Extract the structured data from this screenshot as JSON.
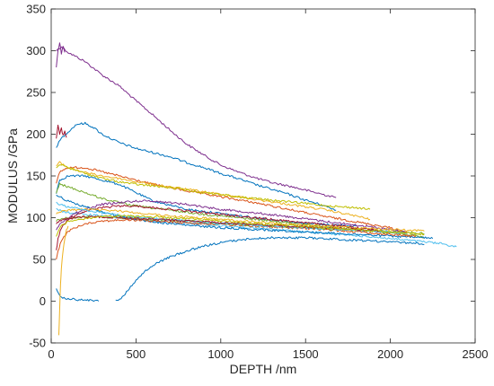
{
  "chart_data": {
    "type": "line",
    "title": "",
    "xlabel": "DEPTH /nm",
    "ylabel": "MODULUS /GPa",
    "xlim": [
      0,
      2500
    ],
    "ylim": [
      -50,
      350
    ],
    "xticks": [
      0,
      500,
      1000,
      1500,
      2000,
      2500
    ],
    "yticks": [
      -50,
      0,
      50,
      100,
      150,
      200,
      250,
      300,
      350
    ],
    "grid": false,
    "legend": "none",
    "series": [
      {
        "color": "#7e2f8e",
        "x": [
          30,
          60,
          100,
          200,
          300,
          400,
          500,
          600,
          700,
          800,
          900,
          1000,
          1100,
          1200,
          1300,
          1400,
          1500,
          1600,
          1680
        ],
        "y": [
          300,
          305,
          298,
          287,
          271,
          258,
          240,
          223,
          205,
          188,
          175,
          163,
          155,
          148,
          142,
          138,
          133,
          128,
          124
        ]
      },
      {
        "color": "#0072bd",
        "x": [
          30,
          60,
          100,
          150,
          200,
          250,
          300,
          400,
          500,
          600,
          700,
          800,
          900,
          1000,
          1100,
          1200,
          1300,
          1400,
          1500,
          1600,
          1680
        ],
        "y": [
          185,
          195,
          203,
          212,
          213,
          208,
          200,
          190,
          183,
          178,
          173,
          166,
          160,
          153,
          147,
          140,
          134,
          128,
          121,
          115,
          109
        ]
      },
      {
        "color": "#0072bd",
        "x": [
          30,
          50,
          100,
          200,
          300,
          400,
          500,
          600,
          800,
          1000,
          1200,
          1400,
          1600,
          1800
        ],
        "y": [
          130,
          145,
          150,
          150,
          145,
          140,
          130,
          120,
          110,
          105,
          100,
          95,
          92,
          90
        ]
      },
      {
        "color": "#d95319",
        "x": [
          30,
          50,
          100,
          200,
          300,
          400,
          500,
          600,
          800,
          1000,
          1200,
          1400,
          1600,
          1800,
          2000,
          2100
        ],
        "y": [
          140,
          155,
          160,
          160,
          155,
          150,
          145,
          140,
          132,
          125,
          118,
          110,
          102,
          95,
          88,
          82
        ]
      },
      {
        "color": "#edb120",
        "x": [
          30,
          50,
          100,
          200,
          300,
          400,
          500,
          600,
          700,
          800,
          900,
          1000,
          1100,
          1200,
          1300,
          1400,
          1500,
          1600,
          1700,
          1800,
          1880
        ],
        "y": [
          162,
          166,
          160,
          154,
          150,
          147,
          143,
          140,
          137,
          134,
          131,
          128,
          125,
          122,
          119,
          116,
          113,
          110,
          106,
          102,
          98
        ]
      },
      {
        "color": "#77ac30",
        "x": [
          30,
          50,
          100,
          200,
          300,
          400,
          500,
          700,
          900,
          1100,
          1300,
          1500,
          1700,
          1900,
          2100,
          2200
        ],
        "y": [
          130,
          140,
          137,
          130,
          123,
          118,
          114,
          109,
          104,
          100,
          96,
          92,
          88,
          84,
          80,
          76
        ]
      },
      {
        "color": "#bfbf00",
        "x": [
          30,
          60,
          100,
          200,
          300,
          400,
          500,
          600,
          700,
          800,
          900,
          1000,
          1100,
          1200,
          1300,
          1400,
          1500,
          1600,
          1700,
          1800,
          1880
        ],
        "y": [
          160,
          164,
          160,
          153,
          147,
          143,
          140,
          138,
          136,
          133,
          130,
          128,
          125,
          123,
          121,
          119,
          117,
          115,
          113,
          112,
          110
        ]
      },
      {
        "color": "#4dbeee",
        "x": [
          30,
          60,
          100,
          200,
          300,
          400,
          500,
          700,
          900,
          1100,
          1300,
          1500,
          1700,
          1900,
          2100,
          2300,
          2390
        ],
        "y": [
          110,
          108,
          106,
          104,
          102,
          100,
          98,
          95,
          92,
          89,
          86,
          83,
          80,
          77,
          73,
          69,
          65
        ]
      },
      {
        "color": "#a2142f",
        "x": [
          30,
          40,
          60,
          100,
          150,
          200,
          300,
          400,
          500,
          600,
          800,
          1000,
          1200,
          1400,
          1600,
          1800,
          1950
        ],
        "y": [
          60,
          75,
          88,
          98,
          104,
          108,
          112,
          114,
          114,
          112,
          108,
          104,
          100,
          96,
          92,
          88,
          84
        ]
      },
      {
        "color": "#7e2f8e",
        "x": [
          30,
          50,
          100,
          150,
          200,
          300,
          400,
          500,
          600,
          800,
          1000,
          1200,
          1400,
          1600,
          1800,
          2000,
          2100
        ],
        "y": [
          85,
          93,
          100,
          106,
          110,
          116,
          118,
          120,
          120,
          116,
          110,
          106,
          101,
          96,
          91,
          86,
          82
        ]
      },
      {
        "color": "#0072bd",
        "x": [
          30,
          60,
          100,
          200,
          300,
          400,
          500,
          600,
          700,
          800,
          1000,
          1200,
          1400,
          1600,
          1800,
          2000,
          2200,
          2250
        ],
        "y": [
          128,
          124,
          120,
          113,
          107,
          102,
          98,
          95,
          93,
          91,
          88,
          86,
          84,
          82,
          80,
          78,
          76,
          75
        ]
      },
      {
        "color": "#d95319",
        "x": [
          30,
          40,
          60,
          100,
          200,
          300,
          400,
          500,
          600,
          700,
          800,
          1000,
          1200,
          1400,
          1600,
          1800,
          2000,
          2150
        ],
        "y": [
          50,
          60,
          72,
          84,
          93,
          96,
          97,
          97,
          96,
          95,
          94,
          92,
          90,
          88,
          86,
          83,
          80,
          78
        ]
      },
      {
        "color": "#edb120",
        "x": [
          30,
          50,
          100,
          200,
          300,
          400,
          500,
          600,
          700,
          800,
          1000,
          1200,
          1400,
          1600,
          1800,
          2000,
          2200
        ],
        "y": [
          104,
          107,
          109,
          110,
          109,
          108,
          106,
          104,
          102,
          101,
          98,
          95,
          92,
          90,
          88,
          86,
          84
        ]
      },
      {
        "color": "#77ac30",
        "x": [
          30,
          50,
          100,
          200,
          300,
          400,
          500,
          600,
          800,
          1000,
          1200,
          1400,
          1600,
          1800,
          2000,
          2200
        ],
        "y": [
          96,
          98,
          100,
          101,
          101,
          100,
          99,
          98,
          96,
          93,
          91,
          89,
          87,
          85,
          83,
          81
        ]
      },
      {
        "color": "#4dbeee",
        "x": [
          30,
          50,
          100,
          200,
          300,
          400,
          500,
          600,
          800,
          1000,
          1200,
          1400,
          1600,
          1800,
          2000,
          2100
        ],
        "y": [
          118,
          116,
          113,
          109,
          106,
          103,
          101,
          99,
          96,
          93,
          91,
          89,
          87,
          85,
          83,
          81
        ]
      },
      {
        "color": "#a2142f",
        "x": [
          30,
          50,
          100,
          200,
          300,
          400,
          500,
          600,
          800,
          1000,
          1200,
          1400,
          1600,
          1800,
          1950
        ],
        "y": [
          92,
          96,
          99,
          101,
          101,
          100,
          99,
          98,
          96,
          94,
          92,
          90,
          88,
          86,
          84
        ]
      },
      {
        "color": "#bfbf00",
        "x": [
          30,
          40,
          60,
          100,
          200,
          300,
          400,
          500,
          600,
          800,
          1000,
          1200,
          1400,
          1600,
          1800,
          2000,
          2200
        ],
        "y": [
          78,
          84,
          90,
          95,
          99,
          101,
          102,
          102,
          101,
          99,
          96,
          93,
          91,
          88,
          86,
          83,
          80
        ]
      },
      {
        "color": "#0072bd",
        "x": [
          30,
          40,
          60,
          100,
          150,
          200,
          250,
          280
        ],
        "y": [
          15,
          10,
          5,
          3,
          2,
          1,
          1,
          0
        ]
      },
      {
        "color": "#0072bd",
        "x": [
          380,
          420,
          460,
          500,
          550,
          600,
          650,
          700,
          800,
          900,
          1000,
          1100,
          1200,
          1300,
          1400,
          1500,
          1600,
          1700,
          1800,
          1900,
          2000,
          2100,
          2200
        ],
        "y": [
          0,
          5,
          15,
          25,
          35,
          43,
          48,
          53,
          60,
          66,
          70,
          73,
          75,
          76,
          76,
          76,
          75,
          74,
          73,
          72,
          71,
          70,
          68
        ]
      },
      {
        "color": "#edb120",
        "x": [
          45,
          50,
          55,
          60,
          70,
          80,
          90,
          100
        ],
        "y": [
          -40,
          -10,
          20,
          40,
          60,
          75,
          85,
          90
        ]
      },
      {
        "color": "#7e2f8e",
        "x": [
          30,
          40,
          50,
          60,
          70,
          80
        ],
        "y": [
          280,
          300,
          310,
          296,
          306,
          298
        ]
      },
      {
        "color": "#a2142f",
        "x": [
          30,
          40,
          50,
          60,
          70,
          80,
          90
        ],
        "y": [
          195,
          212,
          200,
          208,
          198,
          204,
          196
        ]
      }
    ]
  }
}
